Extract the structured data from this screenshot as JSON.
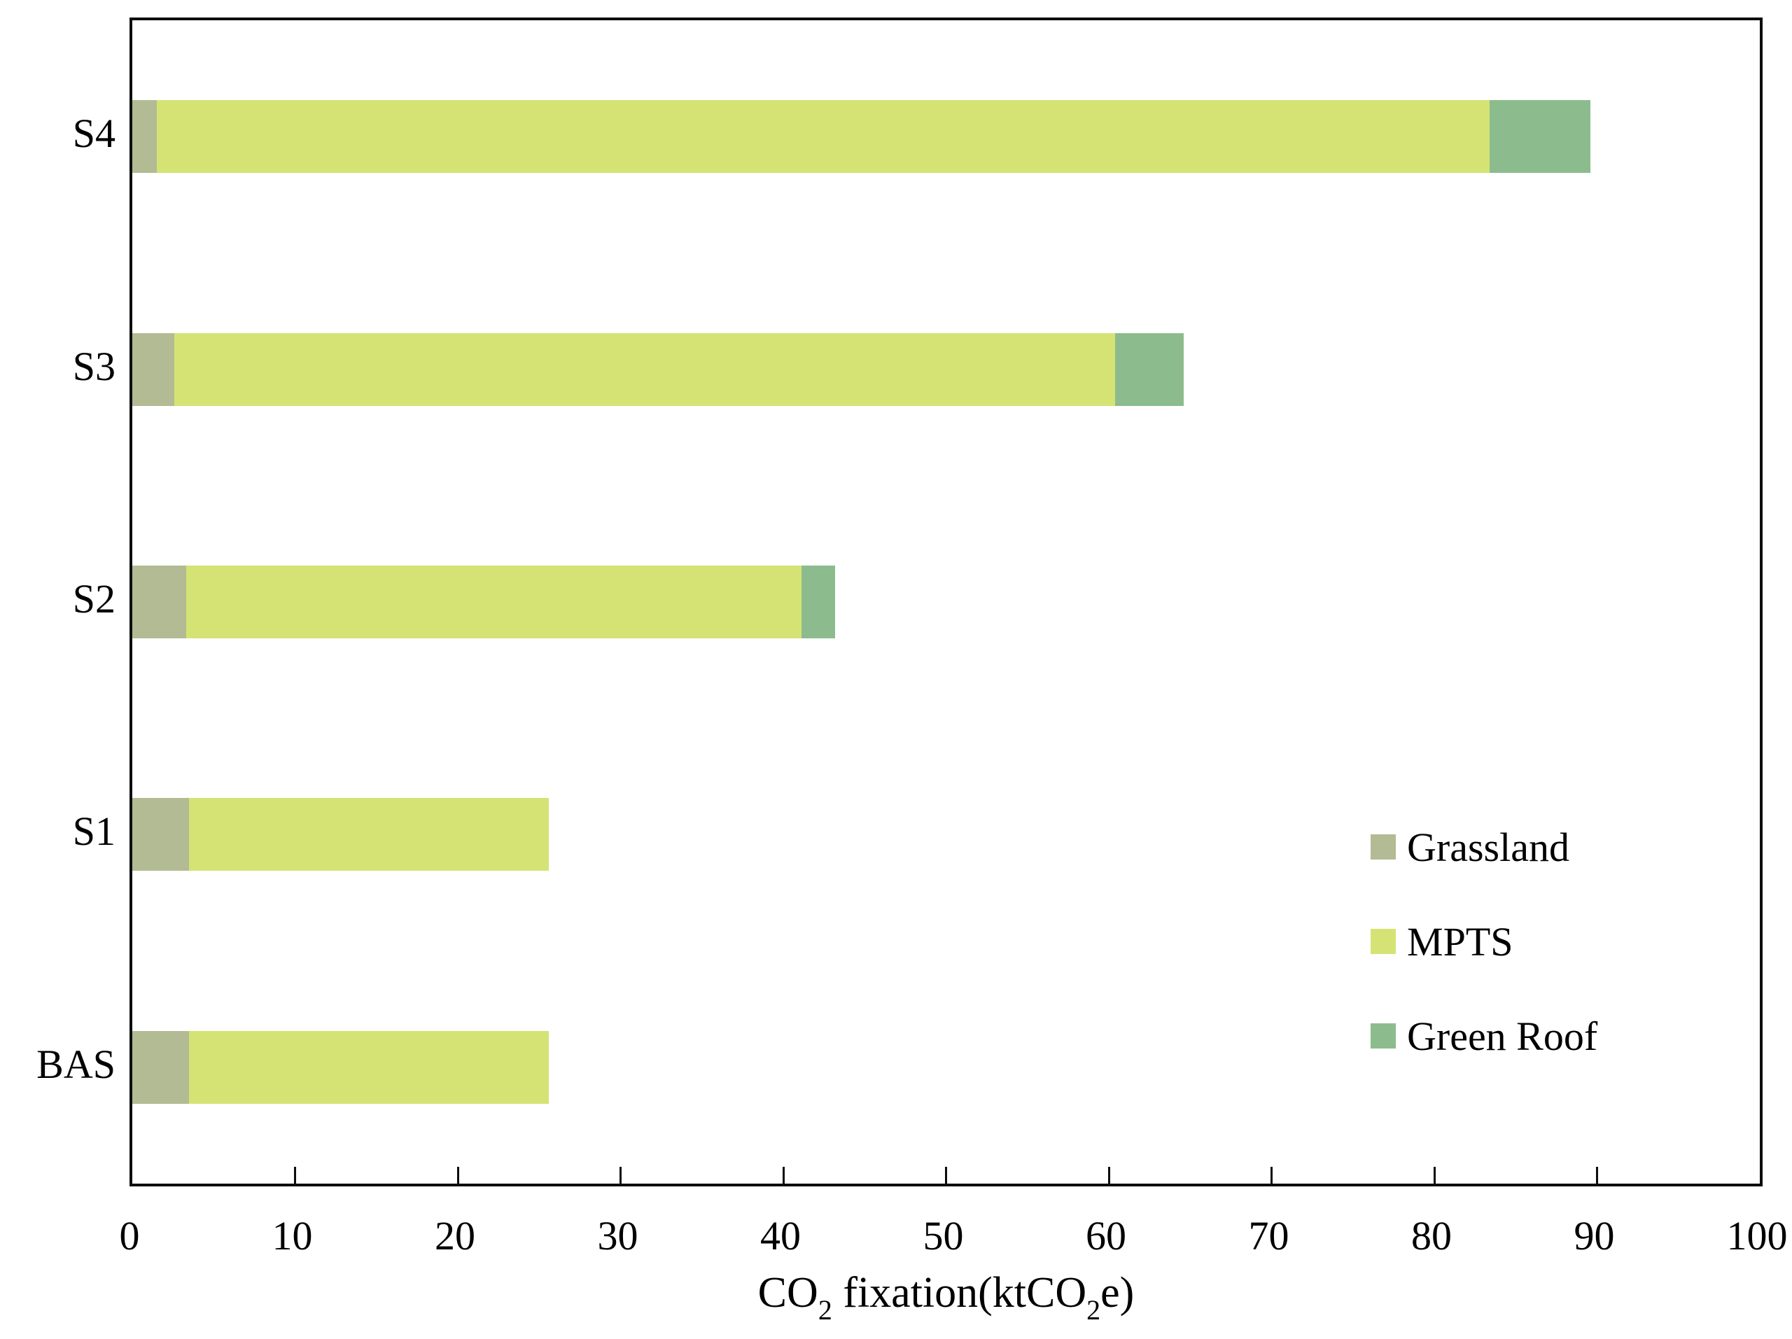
{
  "chart_data": {
    "type": "bar",
    "orientation": "horizontal",
    "stacked": true,
    "title": "",
    "xlabel": "CO2 fixation(ktCO2e)",
    "xlabel_parts": [
      {
        "text": "CO"
      },
      {
        "text": "2",
        "subscript": true
      },
      {
        "text": " fixation(ktCO"
      },
      {
        "text": "2",
        "subscript": true
      },
      {
        "text": "e)"
      }
    ],
    "ylabel": "",
    "categories_bottom_to_top": [
      "BAS",
      "S1",
      "S2",
      "S3",
      "S4"
    ],
    "series": [
      {
        "name": "Grassland",
        "color": "#b2bb93",
        "values": [
          3.5,
          3.5,
          3.3,
          2.6,
          1.5
        ]
      },
      {
        "name": "MPTS",
        "color": "#d5e375",
        "values": [
          22.1,
          22.1,
          37.8,
          57.8,
          81.9
        ]
      },
      {
        "name": "Green Roof",
        "color": "#8cbc8e",
        "values": [
          0,
          0,
          2.1,
          4.2,
          6.2
        ]
      }
    ],
    "totals_bottom_to_top": [
      25.6,
      25.6,
      43.2,
      64.6,
      89.6
    ],
    "xlim": [
      0,
      100
    ],
    "xticks": [
      0,
      10,
      20,
      30,
      40,
      50,
      60,
      70,
      80,
      90,
      100
    ],
    "xtick_labels": [
      "0",
      "10",
      "20",
      "30",
      "40",
      "50",
      "60",
      "70",
      "80",
      "90",
      "100"
    ],
    "grid": false,
    "legend": {
      "position": "inside-right",
      "entries": [
        "Grassland",
        "MPTS",
        "Green Roof"
      ]
    },
    "colors": {
      "grassland": "#b2bb93",
      "mpts": "#d5e375",
      "green_roof": "#8cbc8e",
      "axis": "#0d0d0d",
      "text": "#000000",
      "background": "#ffffff"
    }
  }
}
